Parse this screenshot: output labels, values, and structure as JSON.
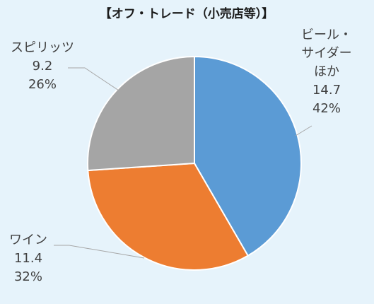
{
  "chart_data": {
    "type": "pie",
    "title": "【オフ・トレード（小売店等）】",
    "start_angle_deg": 0,
    "direction": "clockwise",
    "slices": [
      {
        "name_lines": [
          "ビール・",
          "サイダー",
          "ほか"
        ],
        "value": 14.7,
        "value_text": "14.7",
        "percent_text": "42%",
        "color": "#5b9bd5"
      },
      {
        "name_lines": [
          "ワイン"
        ],
        "value": 11.4,
        "value_text": "11.4",
        "percent_text": "32%",
        "color": "#ed7d31"
      },
      {
        "name_lines": [
          "スピリッツ"
        ],
        "value": 9.2,
        "value_text": "9.2",
        "percent_text": "26%",
        "color": "#a5a5a5"
      }
    ],
    "legend": "none",
    "leader_line_color": "#a6a6a6"
  }
}
